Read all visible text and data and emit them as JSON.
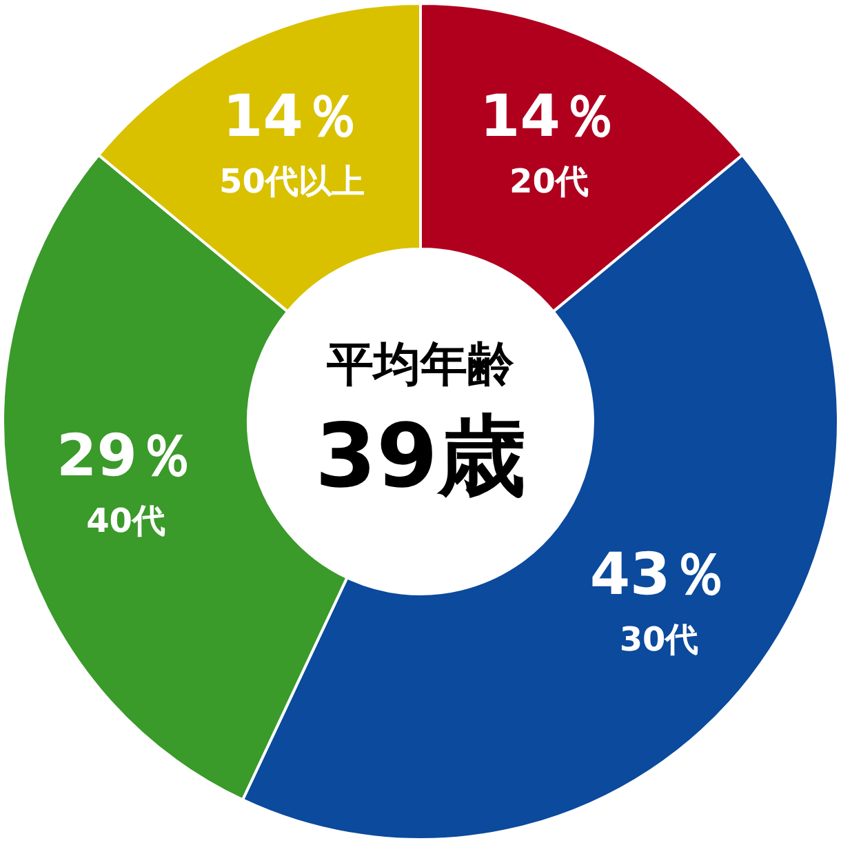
{
  "chart_data": {
    "type": "donut",
    "categories": [
      "20代",
      "30代",
      "40代",
      "50代以上"
    ],
    "values": [
      14,
      43,
      29,
      14
    ],
    "value_labels": [
      "14％",
      "43％",
      "29％",
      "14％"
    ],
    "colors": [
      "#b0001e",
      "#0b4a9c",
      "#3a9a2a",
      "#d9c100"
    ],
    "annotations": [
      "平均年齢",
      "39歳"
    ]
  }
}
